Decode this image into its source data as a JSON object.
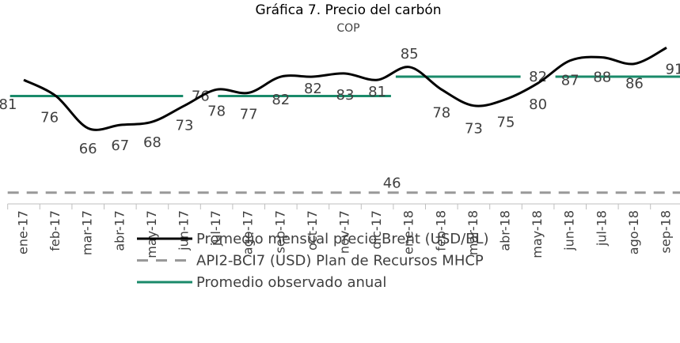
{
  "chart_data": {
    "type": "line",
    "title": "Gráfica 7. Precio del carbón",
    "subtitle": "COP",
    "categories": [
      "ene-17",
      "feb-17",
      "mar-17",
      "abr-17",
      "may-17",
      "jun-17",
      "jul-17",
      "ago-17",
      "sep-17",
      "oct-17",
      "nov-17",
      "dic-17",
      "ene-18",
      "feb-18",
      "mar-18",
      "abr-18",
      "may-18",
      "jun-18",
      "jul-18",
      "ago-18",
      "sep-18"
    ],
    "series": [
      {
        "name": "Promedio mensual precio Brent (USD/BL)",
        "color": "#000000",
        "style": "solid",
        "smooth": true,
        "values": [
          81,
          76,
          66,
          67,
          68,
          73,
          78,
          77,
          82,
          82,
          83,
          81,
          85,
          78,
          73,
          75,
          80,
          87,
          88,
          86,
          91
        ]
      },
      {
        "name": "API2-BCI7 (USD) Plan de Recursos MHCP",
        "color": "#999999",
        "style": "dashed",
        "values": [
          46,
          46,
          46,
          46,
          46,
          46,
          46,
          46,
          46,
          46,
          46,
          46,
          46,
          46,
          46,
          46,
          46,
          46,
          46,
          46,
          46
        ]
      },
      {
        "name": "Promedio observado anual",
        "color": "#1a8a6a",
        "style": "solid",
        "values": [
          76,
          76,
          76,
          76,
          76,
          76,
          76,
          76,
          76,
          76,
          76,
          76,
          82,
          82,
          82,
          82,
          82,
          82,
          82,
          82,
          82
        ]
      }
    ],
    "ylim": [
      42,
      96
    ]
  }
}
